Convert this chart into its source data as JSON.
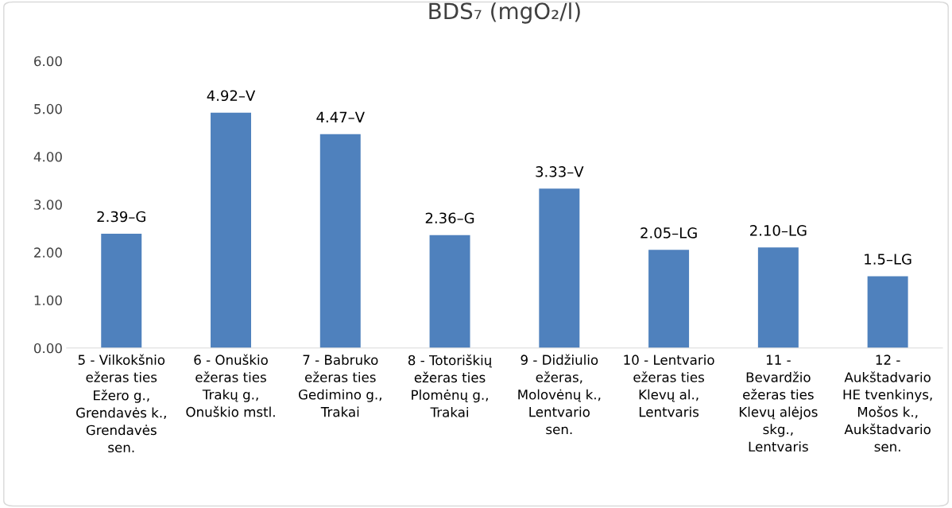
{
  "chart_data": {
    "type": "bar",
    "title": "BDS₇ (mgO₂/l)",
    "categories": [
      "5 - Vilkokšnio\nežeras ties\nEžero g.,\nGrendavės k.,\nGrendavės\nsen.",
      "6 - Onuškio\nežeras ties\nTrakų g.,\nOnuškio mstl.",
      "7 - Babruko\nežeras ties\nGedimino g.,\nTrakai",
      "8 - Totoriškių\nežeras ties\nPlomėnų g.,\nTrakai",
      "9 - Didžiulio\nežeras,\nMolovėnų k.,\nLentvario\nsen.",
      "10 - Lentvario\nežeras ties\nKlevų al.,\nLentvaris",
      "11 -\nBevardžio\nežeras ties\nKlevų alėjos\nskg.,\nLentvaris",
      "12 -\nAukštadvario\nHE tvenkinys,\nMošos k.,\nAukštadvario\nsen."
    ],
    "values": [
      2.39,
      4.92,
      4.47,
      2.36,
      3.33,
      2.05,
      2.1,
      1.5
    ],
    "value_labels": [
      "2.39–G",
      "4.92–V",
      "4.47–V",
      "2.36–G",
      "3.33–V",
      "2.05–LG",
      "2.10–LG",
      "1.5–LG"
    ],
    "color": "#4f81bd",
    "ylim": [
      0,
      6
    ],
    "yticks": [
      {
        "value": 0,
        "label": "0.00"
      },
      {
        "value": 1,
        "label": "1.00"
      },
      {
        "value": 2,
        "label": "2.00"
      },
      {
        "value": 3,
        "label": "3.00"
      },
      {
        "value": 4,
        "label": "4.00"
      },
      {
        "value": 5,
        "label": "5.00"
      },
      {
        "value": 6,
        "label": "6.00"
      }
    ],
    "grid": false
  }
}
